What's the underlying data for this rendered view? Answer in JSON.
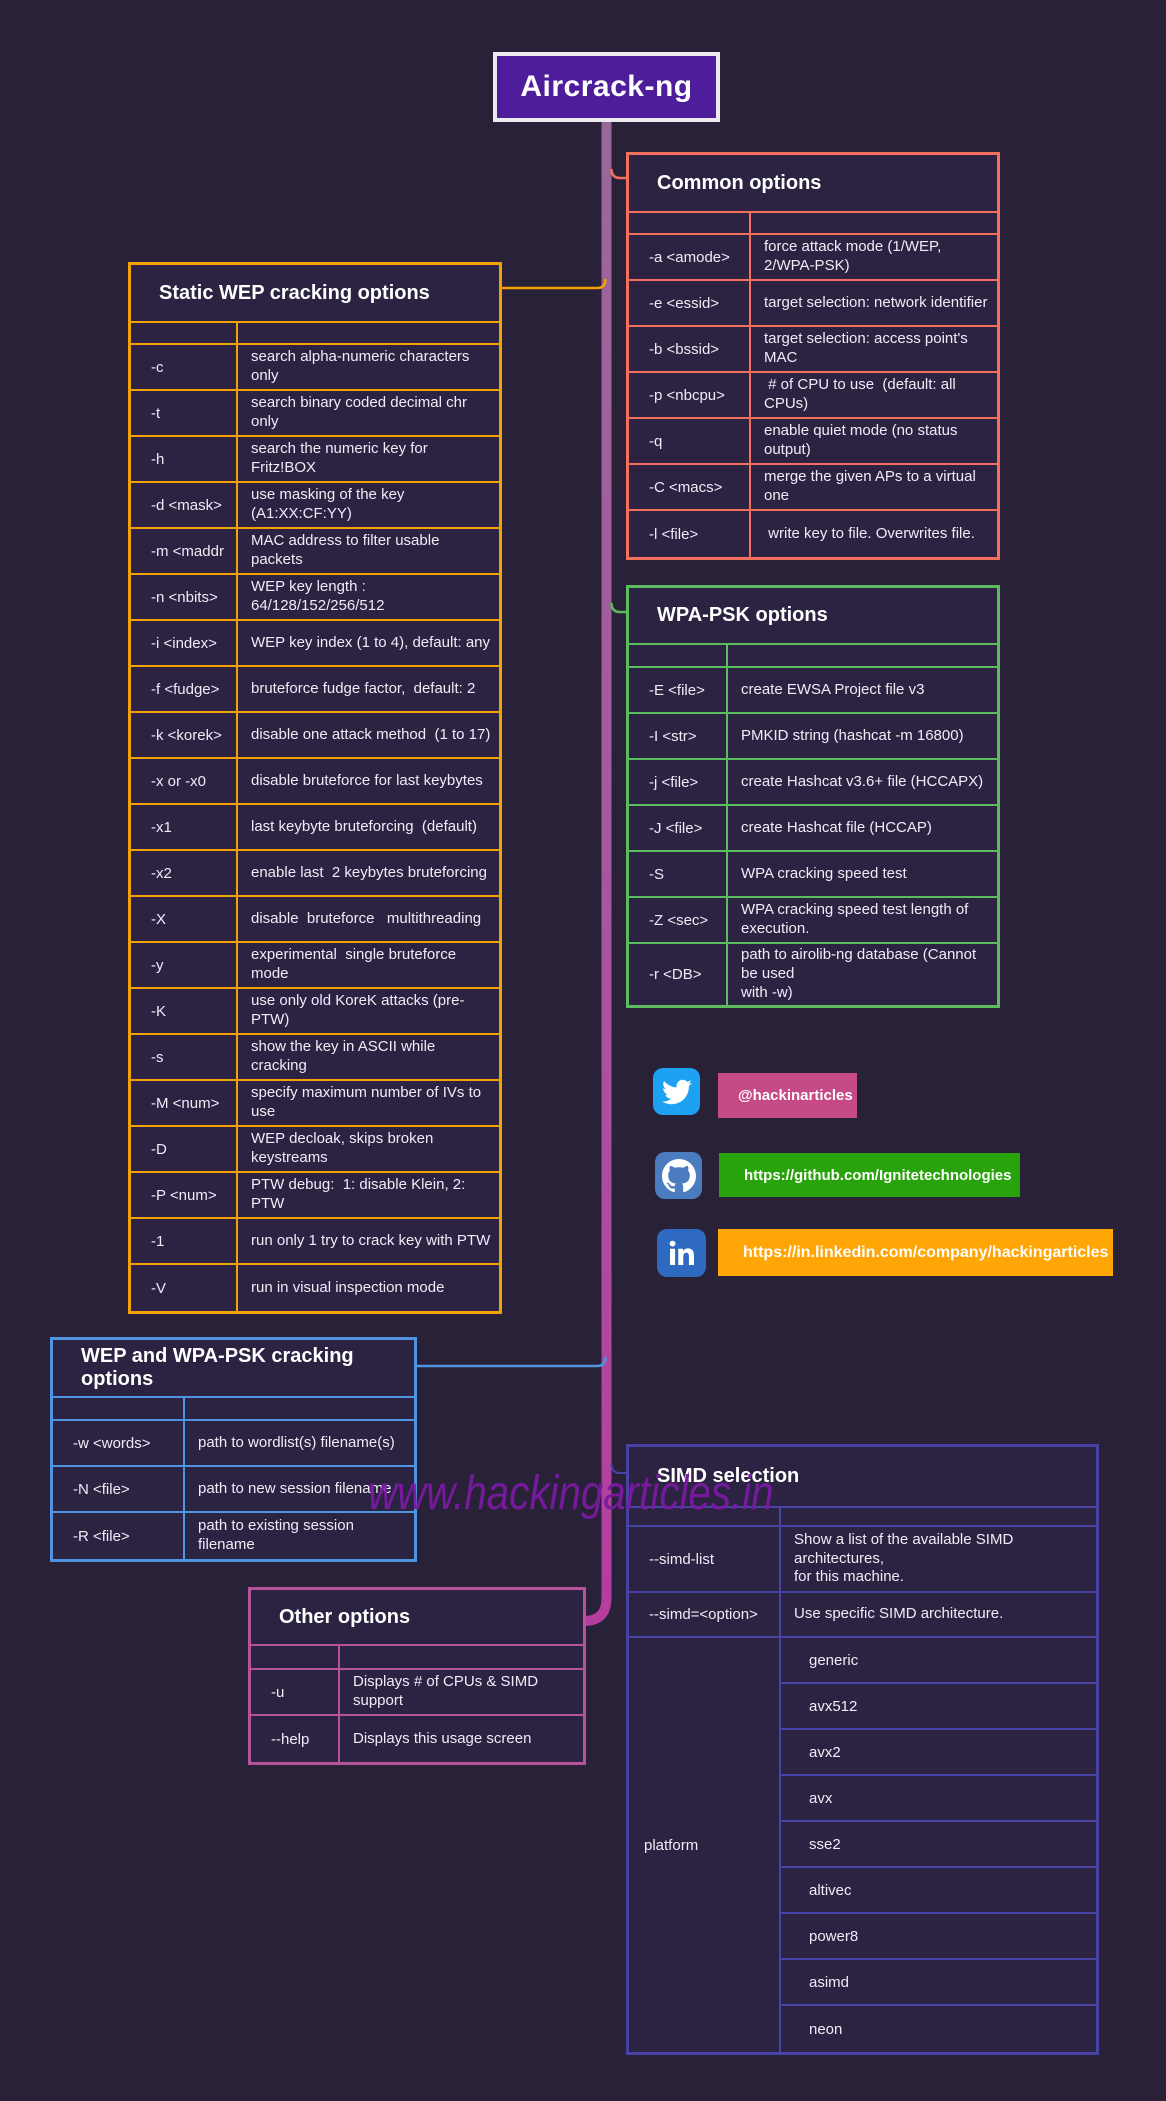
{
  "title": "Aircrack-ng",
  "watermark": "www.hackingarticles.in",
  "colors": {
    "background": "#292138",
    "cell_bg": "#2b2341",
    "title_box_bg": "#4e1d9c",
    "spine_top": "#99689a",
    "spine_bottom": "#b53da0",
    "watermark": "#7b1aa2"
  },
  "tables": {
    "common": {
      "title": "Common options",
      "accent": "#f4705c",
      "rows": [
        [
          "-a <amode>",
          "force attack mode (1/WEP, 2/WPA-PSK)"
        ],
        [
          "-e <essid>",
          "target selection: network identifier"
        ],
        [
          "-b <bssid>",
          "target selection: access point's MAC"
        ],
        [
          "-p <nbcpu>",
          " # of CPU to use  (default: all CPUs)"
        ],
        [
          "-q",
          "enable quiet mode (no status output)"
        ],
        [
          "-C <macs>",
          "merge the given APs to a virtual one"
        ],
        [
          "-l <file>",
          " write key to file. Overwrites file."
        ]
      ]
    },
    "static_wep": {
      "title": "Static WEP cracking options",
      "accent": "#f2a202",
      "rows": [
        [
          "-c",
          "search alpha-numeric characters only"
        ],
        [
          "-t",
          "search binary coded decimal chr only"
        ],
        [
          "-h",
          "search the numeric key for Fritz!BOX"
        ],
        [
          "-d <mask>",
          "use masking of the key (A1:XX:CF:YY)"
        ],
        [
          "-m <maddr",
          "MAC address to filter usable packets"
        ],
        [
          "-n <nbits>",
          "WEP key length :  64/128/152/256/512"
        ],
        [
          "-i <index>",
          "WEP key index (1 to 4), default: any"
        ],
        [
          "-f <fudge>",
          "bruteforce fudge factor,  default: 2"
        ],
        [
          "-k <korek>",
          "disable one attack method  (1 to 17)"
        ],
        [
          "-x or -x0",
          "disable bruteforce for last keybytes"
        ],
        [
          "-x1",
          "last keybyte bruteforcing  (default)"
        ],
        [
          "-x2",
          "enable last  2 keybytes bruteforcing"
        ],
        [
          "-X",
          "disable  bruteforce   multithreading"
        ],
        [
          "-y",
          "experimental  single bruteforce mode"
        ],
        [
          "-K",
          "use only old KoreK attacks (pre-PTW)"
        ],
        [
          "-s",
          "show the key in ASCII while cracking"
        ],
        [
          "-M <num>",
          "specify maximum number of IVs to use"
        ],
        [
          "-D",
          "WEP decloak, skips broken keystreams"
        ],
        [
          "-P <num>",
          "PTW debug:  1: disable Klein, 2: PTW"
        ],
        [
          "-1",
          "run only 1 try to crack key with PTW"
        ],
        [
          "-V",
          "run in visual inspection mode"
        ]
      ]
    },
    "wpa_psk": {
      "title": "WPA-PSK options",
      "accent": "#5cbb5e",
      "rows": [
        [
          "-E <file>",
          "create EWSA Project file v3"
        ],
        [
          "-I <str>",
          "PMKID string (hashcat -m 16800)"
        ],
        [
          "-j <file>",
          "create Hashcat v3.6+ file (HCCAPX)"
        ],
        [
          "-J <file>",
          "create Hashcat file (HCCAP)"
        ],
        [
          "-S",
          "WPA cracking speed test"
        ],
        [
          "-Z <sec>",
          "WPA cracking speed test length of execution."
        ],
        [
          "-r <DB>",
          "path to airolib-ng database (Cannot be used\nwith -w)"
        ]
      ]
    },
    "wep_wpa": {
      "title": "WEP and WPA-PSK cracking options",
      "accent": "#4e94e0",
      "rows": [
        [
          "-w <words>",
          "path to wordlist(s) filename(s)"
        ],
        [
          "-N <file>",
          "path to new session filename"
        ],
        [
          "-R <file>",
          "path to existing session filename"
        ]
      ]
    },
    "other": {
      "title": "Other options",
      "accent": "#b5549a",
      "rows": [
        [
          "-u",
          "Displays # of CPUs & SIMD support"
        ],
        [
          "--help",
          "Displays this usage screen"
        ]
      ]
    },
    "simd": {
      "title": "SIMD selection",
      "accent": "#4743a5",
      "rows": [
        [
          "--simd-list",
          "Show a list of the available SIMD architectures,\nfor this machine."
        ],
        [
          "--simd=<option>",
          "Use specific SIMD architecture."
        ]
      ],
      "platform_label": "platform",
      "platform_options": [
        "generic",
        "avx512",
        "avx2",
        "avx",
        "sse2",
        "altivec",
        "power8",
        "asimd",
        "neon"
      ]
    }
  },
  "social": {
    "twitter": {
      "label": "@hackinarticles",
      "badge_bg": "#c64a87",
      "icon_bg": "#1da1f2"
    },
    "github": {
      "label": "https://github.com/Ignitetechnologies",
      "badge_bg": "#28a30b",
      "icon_bg": "#4b7cc0"
    },
    "linkedin": {
      "label": "https://in.linkedin.com/company/hackingarticles",
      "badge_bg": "#ffa606",
      "icon_bg": "#2e6ac0"
    }
  }
}
